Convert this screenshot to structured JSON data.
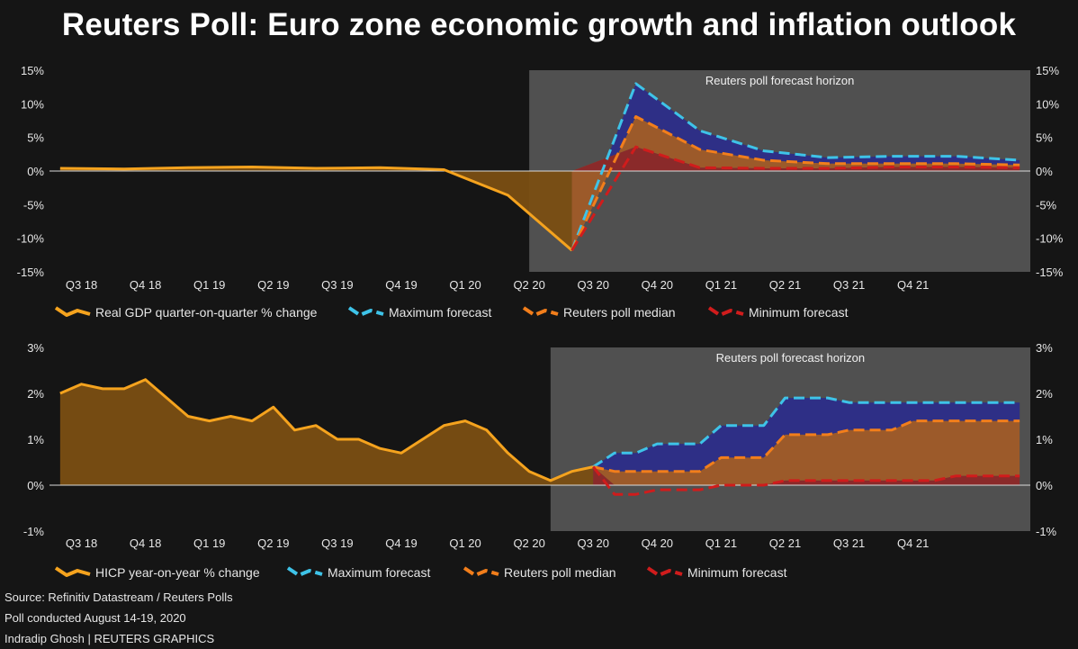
{
  "title": "Reuters Poll: Euro zone economic growth and inflation outlook",
  "colors": {
    "history": "#f5a31e",
    "history_fill": "#7a4e12",
    "maximum": "#3ec3e8",
    "median": "#f27e1b",
    "minimum": "#d01c1c",
    "max_band": "#2e2f86",
    "median_band": "#9c5a2a",
    "min_band": "#8a2a2a",
    "horizon": "#5e5e5e"
  },
  "chart_data": [
    {
      "type": "area",
      "quarters": [
        "Q3 18",
        "Q4 18",
        "Q1 19",
        "Q2 19",
        "Q3 19",
        "Q4 19",
        "Q1 20",
        "Q2 20",
        "Q3 20",
        "Q4 20",
        "Q1 21",
        "Q2 21",
        "Q3 21",
        "Q4 21"
      ],
      "ylim": [
        -15,
        15
      ],
      "yticks": [
        "15%",
        "10%",
        "5%",
        "0%",
        "-5%",
        "-10%",
        "-15%"
      ],
      "horizon_label": "Reuters poll forecast horizon",
      "horizon_start_month": 22,
      "history": {
        "name": "Real GDP quarter-on-quarter % change",
        "x": [
          0,
          3,
          6,
          9,
          12,
          15,
          18,
          21,
          24
        ],
        "values": [
          0.4,
          0.3,
          0.5,
          0.6,
          0.4,
          0.5,
          0.2,
          -3.6,
          -11.8
        ]
      },
      "forecast": {
        "x": [
          24,
          27,
          30,
          33,
          36,
          39,
          42,
          45
        ],
        "maximum": {
          "name": "Maximum forecast",
          "values": [
            -11.8,
            13.0,
            6.0,
            3.0,
            2.0,
            2.2,
            2.2,
            1.6
          ]
        },
        "median": {
          "name": "Reuters poll median",
          "values": [
            -11.8,
            8.1,
            3.2,
            1.6,
            1.1,
            1.1,
            1.1,
            0.9
          ]
        },
        "minimum": {
          "name": "Minimum forecast",
          "values": [
            -11.8,
            3.6,
            0.5,
            0.4,
            0.4,
            0.6,
            0.6,
            0.5
          ]
        }
      }
    },
    {
      "type": "area",
      "quarters": [
        "Q3 18",
        "Q4 18",
        "Q1 19",
        "Q2 19",
        "Q3 19",
        "Q4 19",
        "Q1 20",
        "Q2 20",
        "Q3 20",
        "Q4 20",
        "Q1 21",
        "Q2 21",
        "Q3 21",
        "Q4 21"
      ],
      "ylim": [
        -1,
        3
      ],
      "yticks": [
        "3%",
        "2%",
        "1%",
        "0%",
        "-1%"
      ],
      "horizon_label": "Reuters poll forecast horizon",
      "horizon_start_month": 23,
      "history": {
        "name": "HICP year-on-year % change",
        "x": [
          0,
          1,
          2,
          3,
          4,
          5,
          6,
          7,
          8,
          9,
          10,
          11,
          12,
          13,
          14,
          15,
          16,
          17,
          18,
          19,
          20,
          21,
          22,
          23
        ],
        "values": [
          2.0,
          2.2,
          2.1,
          2.1,
          2.3,
          1.9,
          1.5,
          1.4,
          1.5,
          1.4,
          1.7,
          1.2,
          1.3,
          1.0,
          1.0,
          0.8,
          0.7,
          1.0,
          1.3,
          1.4,
          1.2,
          0.7,
          0.3,
          0.1
        ]
      },
      "history_extra": {
        "x": [
          23,
          24,
          25
        ],
        "values": [
          0.1,
          0.3,
          0.4
        ]
      },
      "forecast": {
        "x": [
          25,
          26,
          27,
          28,
          29,
          30,
          31,
          32,
          33,
          34,
          35,
          36,
          37,
          38,
          39,
          40,
          41,
          42,
          43,
          44,
          45
        ],
        "maximum": {
          "name": "Maximum forecast",
          "values": [
            0.4,
            0.7,
            0.7,
            0.9,
            0.9,
            0.9,
            1.3,
            1.3,
            1.3,
            1.9,
            1.9,
            1.9,
            1.8,
            1.8,
            1.8,
            1.8,
            1.8,
            1.8,
            1.8,
            1.8,
            1.8
          ]
        },
        "median": {
          "name": "Reuters poll median",
          "values": [
            0.4,
            0.3,
            0.3,
            0.3,
            0.3,
            0.3,
            0.6,
            0.6,
            0.6,
            1.1,
            1.1,
            1.1,
            1.2,
            1.2,
            1.2,
            1.4,
            1.4,
            1.4,
            1.4,
            1.4,
            1.4
          ]
        },
        "minimum": {
          "name": "Minimum forecast",
          "values": [
            0.4,
            -0.2,
            -0.2,
            -0.1,
            -0.1,
            -0.1,
            0.0,
            0.0,
            0.0,
            0.1,
            0.1,
            0.1,
            0.1,
            0.1,
            0.1,
            0.1,
            0.1,
            0.2,
            0.2,
            0.2,
            0.2
          ]
        }
      }
    }
  ],
  "footer": {
    "source": "Source: Refinitiv Datastream / Reuters Polls",
    "poll": "Poll conducted August 14-19, 2020",
    "credit": "Indradip Ghosh | REUTERS GRAPHICS"
  }
}
